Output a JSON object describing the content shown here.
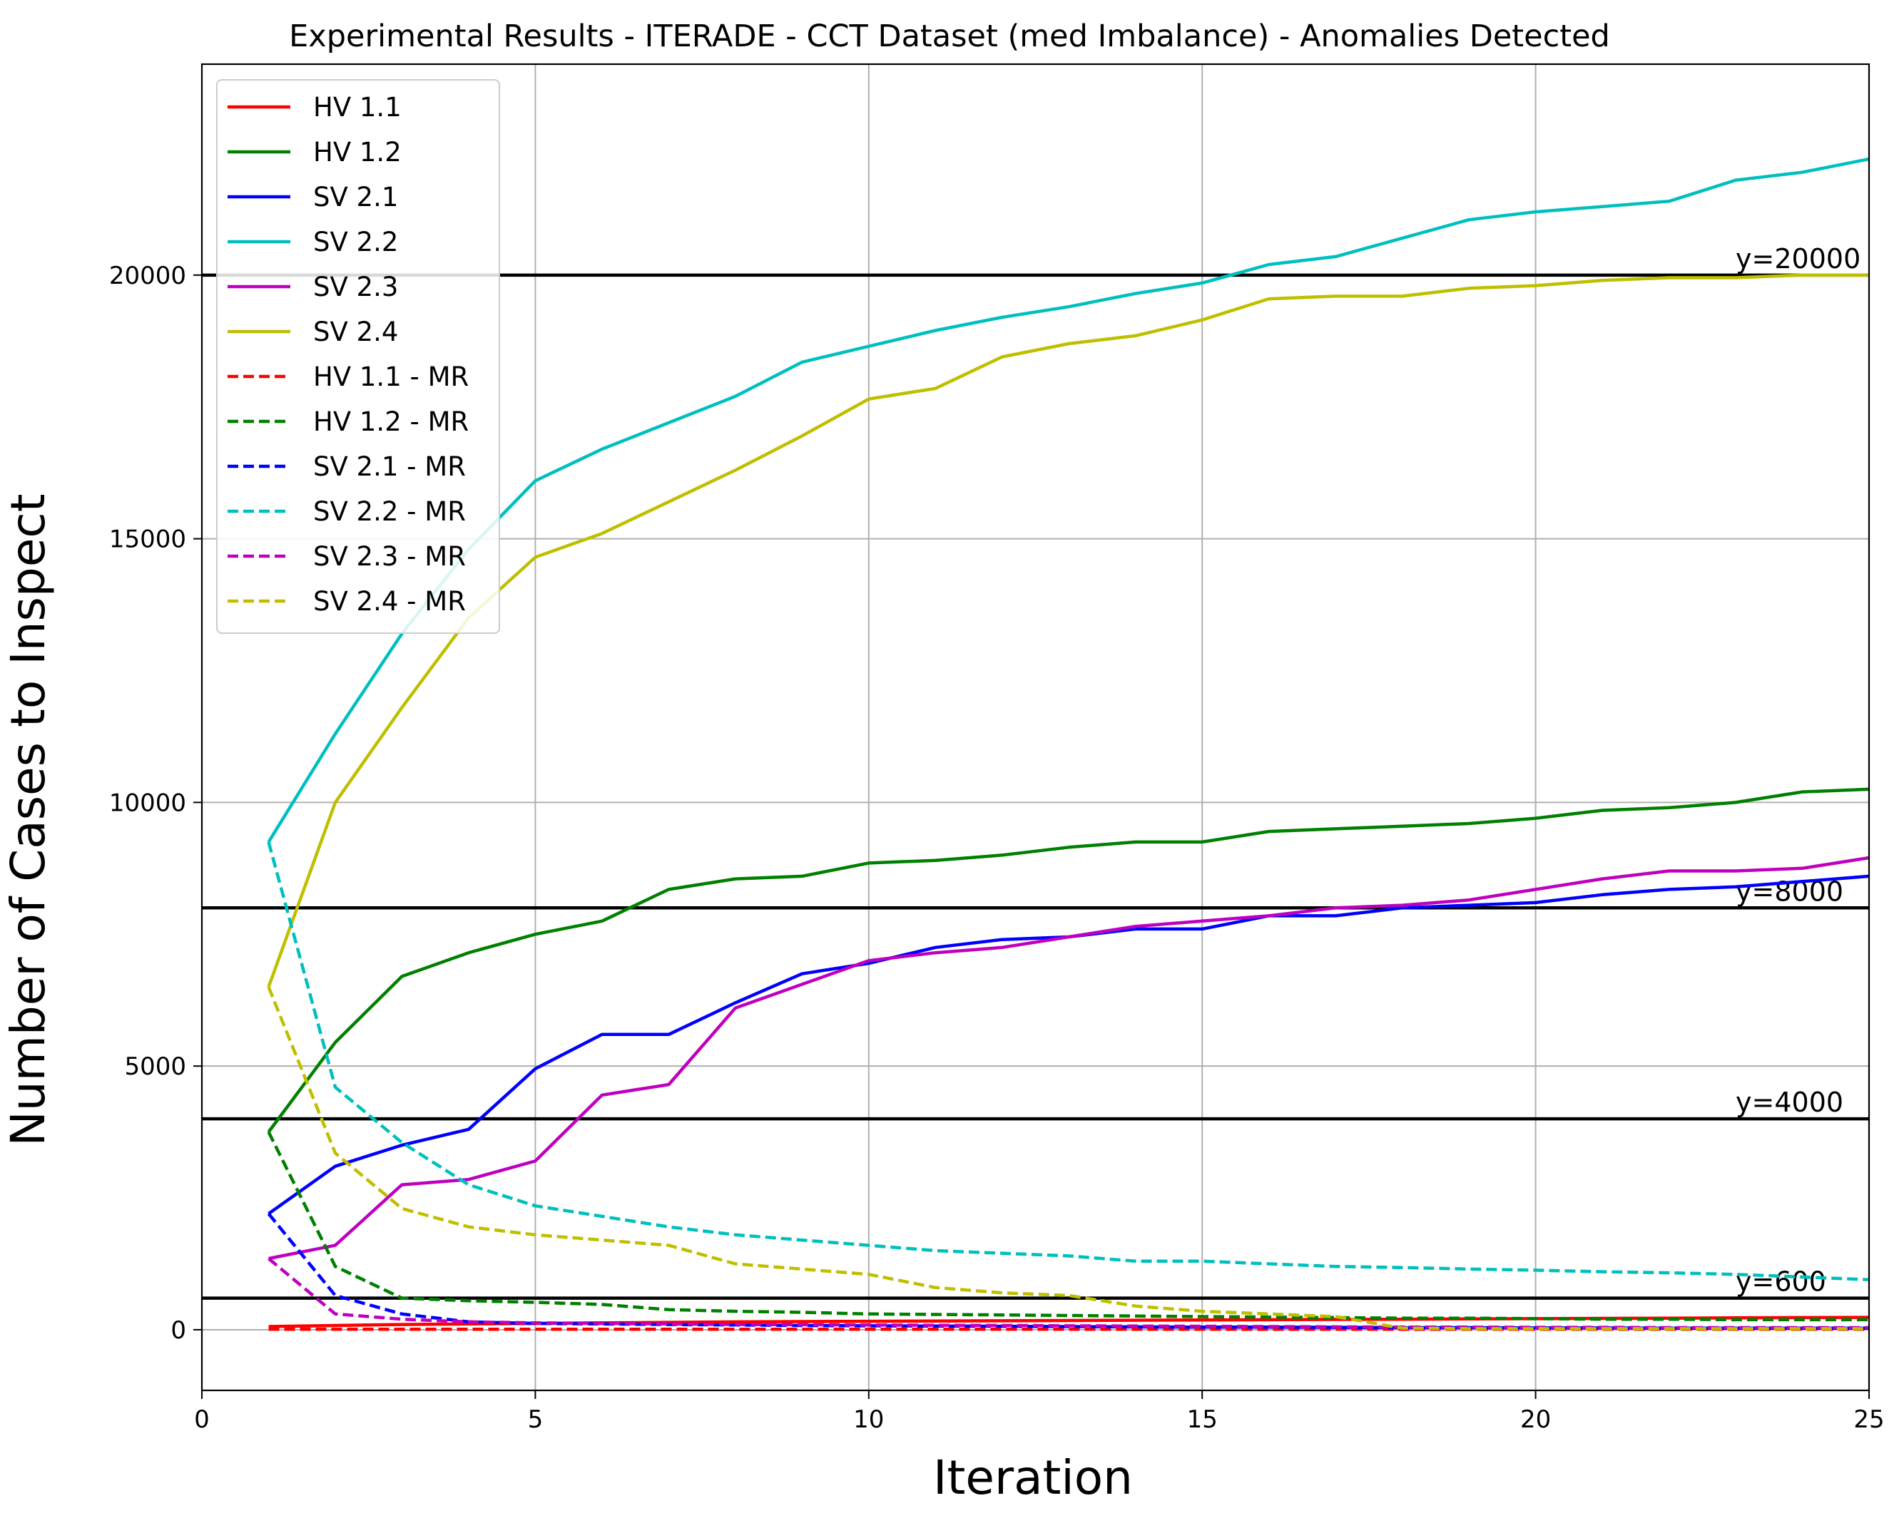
{
  "chart_data": {
    "type": "line",
    "title": "Experimental Results - ITERADE - CCT Dataset (med Imbalance) - Anomalies Detected",
    "xlabel": "Iteration",
    "ylabel": "Number of Cases to Inspect",
    "xlim": [
      0,
      25
    ],
    "ylim": [
      -1150,
      24000
    ],
    "xticks": [
      0,
      5,
      10,
      15,
      20,
      25
    ],
    "yticks": [
      0,
      5000,
      10000,
      15000,
      20000
    ],
    "grid": true,
    "legend_position": "upper-left",
    "x": [
      1,
      2,
      3,
      4,
      5,
      6,
      7,
      8,
      9,
      10,
      11,
      12,
      13,
      14,
      15,
      16,
      17,
      18,
      19,
      20,
      21,
      22,
      23,
      24,
      25
    ],
    "reference_lines": [
      {
        "y": 20000,
        "label": "y=20000"
      },
      {
        "y": 8000,
        "label": "y=8000"
      },
      {
        "y": 4000,
        "label": "y=4000"
      },
      {
        "y": 600,
        "label": "y=600"
      }
    ],
    "series": [
      {
        "name": "HV 1.1",
        "color": "#ff0000",
        "dash": "solid",
        "values": [
          60,
          80,
          100,
          110,
          120,
          130,
          140,
          150,
          155,
          160,
          165,
          170,
          175,
          180,
          185,
          190,
          195,
          200,
          205,
          210,
          215,
          220,
          225,
          230,
          235
        ]
      },
      {
        "name": "HV 1.2",
        "color": "#008000",
        "dash": "solid",
        "values": [
          3750,
          5450,
          6700,
          7150,
          7500,
          7750,
          8350,
          8550,
          8600,
          8850,
          8900,
          9000,
          9150,
          9250,
          9250,
          9450,
          9500,
          9550,
          9600,
          9700,
          9850,
          9900,
          10000,
          10200,
          10250
        ]
      },
      {
        "name": "SV 2.1",
        "color": "#0000ff",
        "dash": "solid",
        "values": [
          2200,
          3100,
          3500,
          3800,
          4950,
          5600,
          5600,
          6200,
          6750,
          6950,
          7250,
          7400,
          7450,
          7600,
          7600,
          7850,
          7850,
          8000,
          8050,
          8100,
          8250,
          8350,
          8400,
          8500,
          8600
        ]
      },
      {
        "name": "SV 2.2",
        "color": "#00bfbf",
        "dash": "solid",
        "values": [
          9250,
          11300,
          13200,
          14800,
          16100,
          16700,
          17200,
          17700,
          18350,
          18650,
          18950,
          19200,
          19400,
          19650,
          19850,
          20200,
          20350,
          20700,
          21050,
          21200,
          21300,
          21400,
          21800,
          21950,
          22200
        ]
      },
      {
        "name": "SV 2.3",
        "color": "#bf00bf",
        "dash": "solid",
        "values": [
          1350,
          1600,
          2750,
          2850,
          3200,
          4450,
          4650,
          6100,
          6550,
          7000,
          7150,
          7250,
          7450,
          7650,
          7750,
          7850,
          8000,
          8050,
          8150,
          8350,
          8550,
          8700,
          8700,
          8750,
          8950
        ]
      },
      {
        "name": "SV 2.4",
        "color": "#bfbf00",
        "dash": "solid",
        "values": [
          6500,
          10000,
          11800,
          13500,
          14650,
          15100,
          15700,
          16300,
          16950,
          17650,
          17850,
          18450,
          18700,
          18850,
          19150,
          19550,
          19600,
          19600,
          19750,
          19800,
          19900,
          19950,
          19950,
          20000,
          20000
        ]
      },
      {
        "name": "HV 1.1 - MR",
        "color": "#ff0000",
        "dash": "dashed",
        "values": [
          10,
          10,
          10,
          10,
          10,
          10,
          10,
          10,
          10,
          10,
          10,
          10,
          10,
          10,
          10,
          10,
          10,
          10,
          10,
          10,
          10,
          10,
          10,
          10,
          10
        ]
      },
      {
        "name": "HV 1.2 - MR",
        "color": "#008000",
        "dash": "dashed",
        "values": [
          3750,
          1200,
          600,
          550,
          520,
          480,
          380,
          350,
          330,
          300,
          290,
          280,
          270,
          260,
          250,
          240,
          230,
          220,
          220,
          210,
          200,
          200,
          190,
          190,
          190
        ]
      },
      {
        "name": "SV 2.1 - MR",
        "color": "#0000ff",
        "dash": "dashed",
        "values": [
          2200,
          650,
          300,
          150,
          120,
          110,
          100,
          90,
          80,
          75,
          70,
          65,
          60,
          55,
          50,
          50,
          45,
          40,
          40,
          35,
          35,
          30,
          30,
          30,
          30
        ]
      },
      {
        "name": "SV 2.2 - MR",
        "color": "#00bfbf",
        "dash": "dashed",
        "values": [
          9250,
          4600,
          3550,
          2750,
          2350,
          2150,
          1950,
          1800,
          1700,
          1600,
          1500,
          1450,
          1400,
          1300,
          1300,
          1250,
          1200,
          1180,
          1150,
          1130,
          1100,
          1080,
          1050,
          1000,
          950
        ]
      },
      {
        "name": "SV 2.3 - MR",
        "color": "#bf00bf",
        "dash": "dashed",
        "values": [
          1350,
          300,
          200,
          150,
          130,
          120,
          110,
          100,
          95,
          90,
          85,
          80,
          75,
          70,
          65,
          60,
          55,
          50,
          50,
          45,
          45,
          40,
          40,
          40,
          40
        ]
      },
      {
        "name": "SV 2.4 - MR",
        "color": "#bfbf00",
        "dash": "dashed",
        "values": [
          6500,
          3350,
          2300,
          1950,
          1800,
          1700,
          1600,
          1250,
          1150,
          1050,
          800,
          700,
          650,
          450,
          350,
          300,
          250,
          30,
          20,
          20,
          20,
          20,
          20,
          20,
          20
        ]
      }
    ]
  }
}
